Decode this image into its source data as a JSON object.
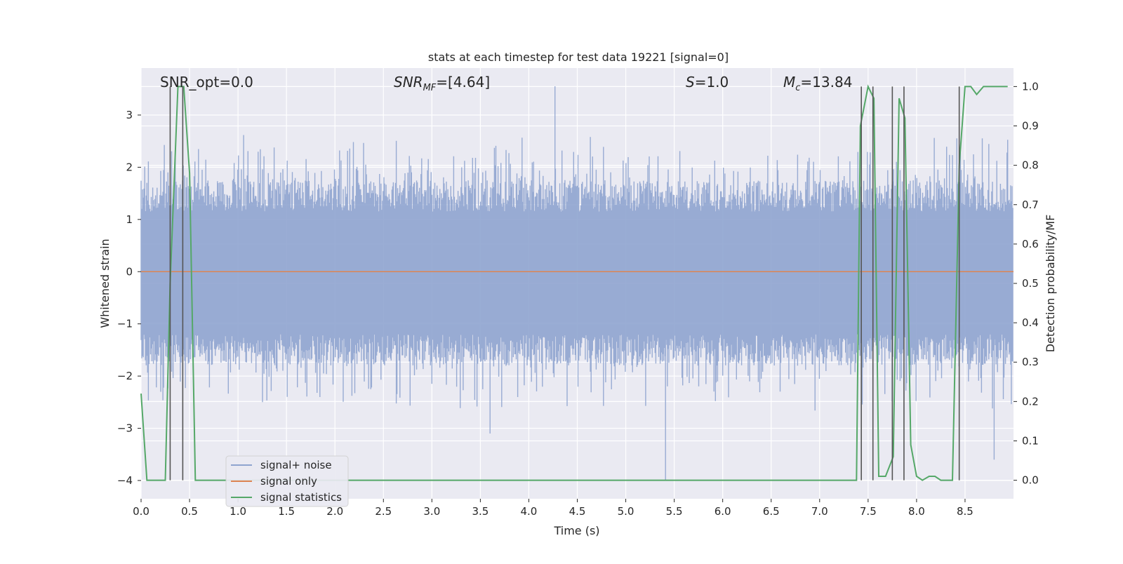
{
  "chart_data": {
    "type": "line",
    "title": "stats at each timestep for test data 19221 [signal=0]",
    "xlabel": "Time (s)",
    "ylabel_left": "Whitened strain",
    "ylabel_right": "Detection probability/MF",
    "xlim": [
      0.0,
      9.0
    ],
    "ylim_left": [
      -4.35,
      3.9
    ],
    "ylim_right": [
      -0.047,
      1.047
    ],
    "x_ticks": [
      "0.0",
      "0.5",
      "1.0",
      "1.5",
      "2.0",
      "2.5",
      "3.0",
      "3.5",
      "4.0",
      "4.5",
      "5.0",
      "5.5",
      "6.0",
      "6.5",
      "7.0",
      "7.5",
      "8.0",
      "8.5"
    ],
    "y_ticks_left": [
      "3",
      "2",
      "1",
      "0",
      "−1",
      "−2",
      "−3",
      "−4"
    ],
    "y_ticks_right": [
      "1.0",
      "0.9",
      "0.8",
      "0.7",
      "0.6",
      "0.5",
      "0.4",
      "0.3",
      "0.2",
      "0.1",
      "0.0"
    ],
    "annotations": [
      {
        "text": "SNR_opt=0.0"
      },
      {
        "text": "SNR",
        "sub": "MF",
        "rest": "=[4.64]"
      },
      {
        "text": "S",
        "rest": "=1.0"
      },
      {
        "text": "M",
        "sub": "c",
        "rest": "=13.84"
      }
    ],
    "legend": {
      "placement": "lower-left",
      "entries": [
        {
          "label": "signal+ noise",
          "color": "#8fa4cf"
        },
        {
          "label": "signal only",
          "color": "#dd8452"
        },
        {
          "label": "signal statistics",
          "color": "#55a868"
        }
      ]
    },
    "series": [
      {
        "name": "signal+ noise",
        "axis": "left",
        "color": "#8fa4cf",
        "description_range": [
          -4.0,
          3.55
        ],
        "peaks": [
          {
            "x": 4.27,
            "y": 3.55
          },
          {
            "x": 5.41,
            "y": -4.0
          },
          {
            "x": 8.8,
            "y": -3.6
          },
          {
            "x": 3.6,
            "y": -3.1
          }
        ]
      },
      {
        "name": "signal only",
        "axis": "left",
        "color": "#dd8452",
        "x": [
          0.0,
          9.0
        ],
        "y": [
          0.0,
          0.0
        ]
      },
      {
        "name": "signal statistics",
        "axis": "right",
        "color": "#55a868",
        "x": [
          0.0,
          0.06,
          0.25,
          0.3,
          0.38,
          0.44,
          0.5,
          0.56,
          0.62,
          7.35,
          7.38,
          7.42,
          7.5,
          7.56,
          7.61,
          7.68,
          7.76,
          7.82,
          7.88,
          7.94,
          8.0,
          8.06,
          8.13,
          8.19,
          8.25,
          8.37,
          8.44,
          8.5,
          8.56,
          8.62,
          8.69,
          8.75,
          8.81,
          8.88,
          8.94
        ],
        "y": [
          0.22,
          0.0,
          0.0,
          0.5,
          1.0,
          1.0,
          0.78,
          0.0,
          0.0,
          0.0,
          0.0,
          0.9,
          1.0,
          0.97,
          0.01,
          0.01,
          0.06,
          0.97,
          0.92,
          0.09,
          0.01,
          0.0,
          0.01,
          0.01,
          0.0,
          0.0,
          0.8,
          1.0,
          1.0,
          0.98,
          1.0,
          1.0,
          1.0,
          1.0,
          1.0
        ]
      }
    ],
    "vertical_markers_x": [
      0.3,
      0.43,
      7.43,
      7.55,
      7.75,
      7.87,
      8.44
    ]
  }
}
